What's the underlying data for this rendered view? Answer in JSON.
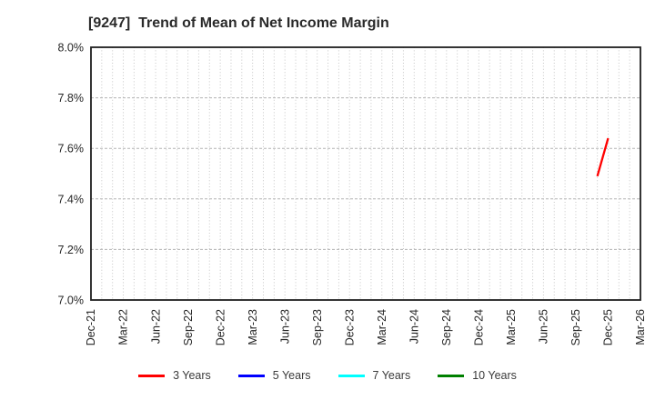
{
  "chart_data": {
    "type": "line",
    "title": "[9247]  Trend of Mean of Net Income Margin",
    "x_axis": {
      "tick_labels": [
        "Dec-21",
        "Mar-22",
        "Jun-22",
        "Sep-22",
        "Dec-22",
        "Mar-23",
        "Jun-23",
        "Sep-23",
        "Dec-23",
        "Mar-24",
        "Jun-24",
        "Sep-24",
        "Dec-24",
        "Mar-25",
        "Jun-25",
        "Sep-25",
        "Dec-25",
        "Mar-26"
      ],
      "months_per_tick": 3,
      "total_month_units": 51,
      "minor_grid": "monthly",
      "label_rotation_deg": 90
    },
    "y_axis": {
      "min": 7.0,
      "max": 8.0,
      "ticks": [
        {
          "value": 7.0,
          "label": "7.0%"
        },
        {
          "value": 7.2,
          "label": "7.2%"
        },
        {
          "value": 7.4,
          "label": "7.4%"
        },
        {
          "value": 7.6,
          "label": "7.6%"
        },
        {
          "value": 7.8,
          "label": "7.8%"
        },
        {
          "value": 8.0,
          "label": "8.0%"
        }
      ],
      "unit": "percent"
    },
    "series": [
      {
        "name": "3 Years",
        "color": "#ff0000",
        "points": [
          {
            "x_label": "Nov-25",
            "month_index": 47,
            "value": 7.49
          },
          {
            "x_label": "Dec-25",
            "month_index": 48,
            "value": 7.64
          }
        ]
      },
      {
        "name": "5 Years",
        "color": "#0000ff",
        "points": []
      },
      {
        "name": "7 Years",
        "color": "#00ffff",
        "points": []
      },
      {
        "name": "10 Years",
        "color": "#008000",
        "points": []
      }
    ],
    "legend": {
      "position": "bottom-center",
      "entries": [
        "3 Years",
        "5 Years",
        "7 Years",
        "10 Years"
      ]
    },
    "grid": true,
    "colors": {
      "plot_background": "#ffffff",
      "spine": "#1f1f1f",
      "minor_gridline": "#c6c6c6",
      "major_gridline": "#b3b3b3",
      "tick_label": "#262626"
    }
  }
}
